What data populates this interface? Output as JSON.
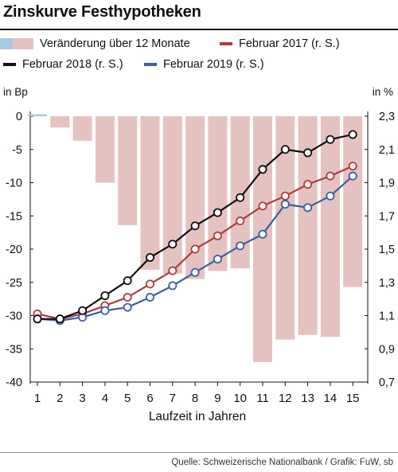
{
  "title": "Zinskurve Festhypotheken",
  "legend": {
    "change": "Veränderung über 12 Monate",
    "feb2017": "Februar 2017 (r. S.)",
    "feb2018": "Februar 2018 (r. S.)",
    "feb2019": "Februar 2019 (r. S.)"
  },
  "left_unit": "in Bp",
  "right_unit": "in %",
  "source": "Quelle: Schweizerische Nationalbank / Grafik: FuW, sb",
  "colors": {
    "bar_positive": "#e3c2bf",
    "bar_negative": "#a8c8e4",
    "feb2017": "#b03a3c",
    "feb2018": "#111111",
    "feb2019": "#3b5ea8"
  },
  "chart_data": {
    "type": "bar+line",
    "xlabel": "Laufzeit in Jahren",
    "categories": [
      1,
      2,
      3,
      4,
      5,
      6,
      7,
      8,
      9,
      10,
      11,
      12,
      13,
      14,
      15
    ],
    "left_axis": {
      "label": "in Bp",
      "range": [
        -40,
        0
      ],
      "ticks": [
        0,
        -5,
        -10,
        -15,
        -20,
        -25,
        -30,
        -35,
        -40
      ]
    },
    "right_axis": {
      "label": "in %",
      "range": [
        0.7,
        2.3
      ],
      "ticks": [
        "2,3",
        "2,1",
        "1,9",
        "1,7",
        "1,5",
        "1,3",
        "1,1",
        "0,9",
        "0,7"
      ],
      "tick_values": [
        2.3,
        2.1,
        1.9,
        1.7,
        1.5,
        1.3,
        1.1,
        0.9,
        0.7
      ]
    },
    "bars": {
      "name": "Veränderung über 12 Monate",
      "axis": "left",
      "values": [
        0.3,
        -1.7,
        -3.7,
        -10,
        -16.4,
        -23.1,
        -23.7,
        -24.5,
        -23.3,
        -22.9,
        -37,
        -33.6,
        -32.9,
        -33.2,
        -25.7
      ]
    },
    "series": [
      {
        "name": "Februar 2017 (r. S.)",
        "axis": "right",
        "values": [
          1.11,
          1.08,
          1.11,
          1.16,
          1.21,
          1.29,
          1.37,
          1.5,
          1.58,
          1.67,
          1.76,
          1.82,
          1.89,
          1.94,
          2.0
        ]
      },
      {
        "name": "Februar 2018 (r. S.)",
        "axis": "right",
        "values": [
          1.08,
          1.08,
          1.13,
          1.22,
          1.31,
          1.45,
          1.53,
          1.64,
          1.72,
          1.81,
          1.98,
          2.1,
          2.08,
          2.16,
          2.19
        ]
      },
      {
        "name": "Februar 2019 (r. S.)",
        "axis": "right",
        "values": [
          1.08,
          1.07,
          1.09,
          1.13,
          1.15,
          1.21,
          1.28,
          1.36,
          1.44,
          1.52,
          1.59,
          1.77,
          1.75,
          1.82,
          1.94
        ]
      }
    ],
    "grid": false
  }
}
